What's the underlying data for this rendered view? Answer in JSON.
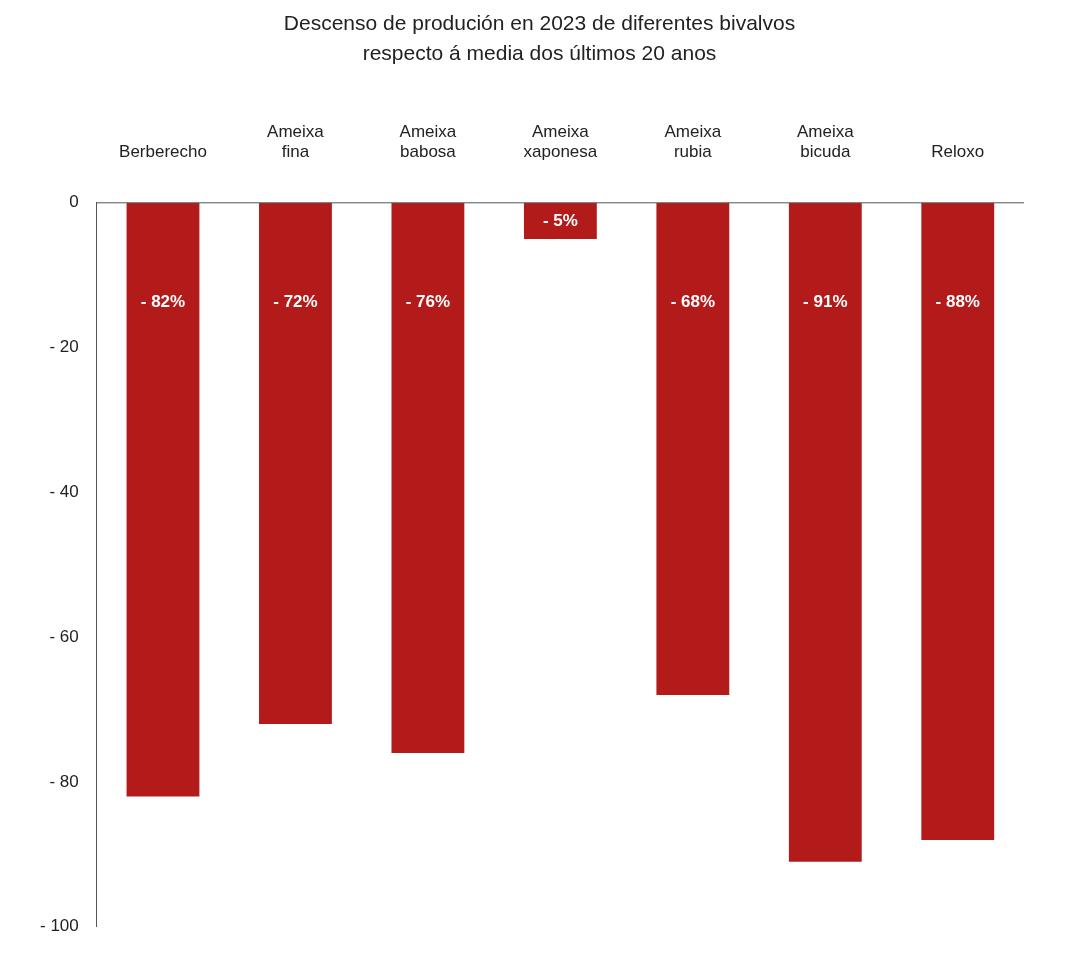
{
  "chart_data": {
    "type": "bar",
    "title": "Descenso de produción en 2023 de diferentes bivalvos respecto á media dos últimos 20 anos",
    "categories": [
      "Berberecho",
      "Ameixa fina",
      "Ameixa babosa",
      "Ameixa xaponesa",
      "Ameixa rubia",
      "Ameixa bicuda",
      "Reloxo"
    ],
    "values": [
      -82,
      -72,
      -76,
      -5,
      -68,
      -91,
      -88
    ],
    "value_labels": [
      "- 82%",
      "- 72%",
      "- 76%",
      "- 5%",
      "- 68%",
      "- 91%",
      "- 88%"
    ],
    "color": "#b31b1b",
    "ylim": [
      -100,
      0
    ],
    "yticks": [
      {
        "value": 0,
        "label": "0"
      },
      {
        "value": -20,
        "label": "- 20"
      },
      {
        "value": -40,
        "label": "- 40"
      },
      {
        "value": -60,
        "label": "- 60"
      },
      {
        "value": -80,
        "label": "- 80"
      },
      {
        "value": -100,
        "label": "- 100"
      }
    ],
    "grid": false,
    "legend": false
  }
}
